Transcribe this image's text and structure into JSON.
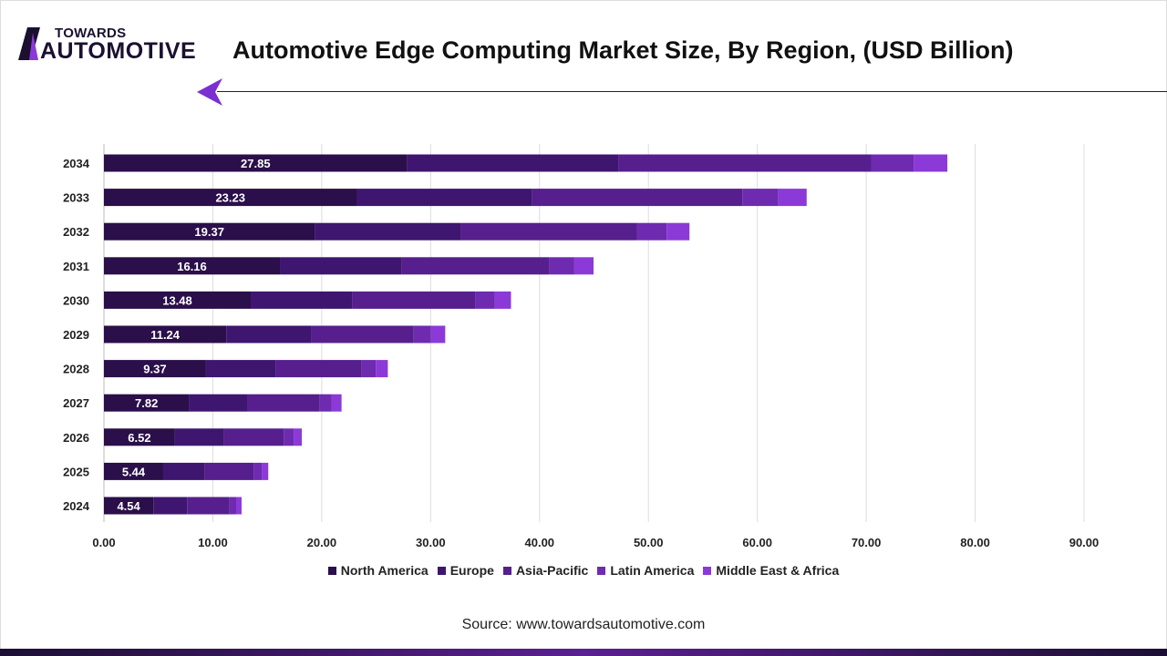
{
  "brand": {
    "logo_line1": "TOWARDS",
    "logo_line2": "AUTOMOTIVE"
  },
  "header": {
    "title": "Automotive Edge Computing Market Size, By Region, (USD Billion)"
  },
  "footer": {
    "source": "Source: www.towardsautomotive.com"
  },
  "chart_data": {
    "type": "bar",
    "orientation": "horizontal",
    "stacked": true,
    "title": "Automotive Edge Computing Market Size, By Region, (USD Billion)",
    "categories": [
      "2034",
      "2033",
      "2032",
      "2031",
      "2030",
      "2029",
      "2028",
      "2027",
      "2026",
      "2025",
      "2024"
    ],
    "xlim": [
      0,
      90
    ],
    "x_ticks": [
      "0.00",
      "10.00",
      "20.00",
      "30.00",
      "40.00",
      "50.00",
      "60.00",
      "70.00",
      "80.00",
      "90.00"
    ],
    "grid": "vertical",
    "legend_position": "bottom",
    "series": [
      {
        "name": "North America",
        "color": "#2a0f4a",
        "values": [
          27.85,
          23.23,
          19.37,
          16.16,
          13.48,
          11.24,
          9.37,
          7.82,
          6.52,
          5.44,
          4.54
        ],
        "labels": [
          "27.85",
          "23.23",
          "19.37",
          "16.16",
          "13.48",
          "11.24",
          "9.37",
          "7.82",
          "6.52",
          "5.44",
          "4.54"
        ]
      },
      {
        "name": "Europe",
        "color": "#3e1670",
        "values": [
          19.4,
          16.1,
          13.4,
          11.2,
          9.3,
          7.8,
          6.4,
          5.4,
          4.5,
          3.8,
          3.1
        ]
      },
      {
        "name": "Asia-Pacific",
        "color": "#561f8d",
        "values": [
          23.2,
          19.3,
          16.2,
          13.5,
          11.3,
          9.4,
          7.9,
          6.6,
          5.5,
          4.5,
          3.9
        ]
      },
      {
        "name": "Latin America",
        "color": "#6e2bb0",
        "values": [
          3.9,
          3.3,
          2.7,
          2.3,
          1.8,
          1.6,
          1.3,
          1.1,
          0.9,
          0.75,
          0.6
        ]
      },
      {
        "name": "Middle East & Africa",
        "color": "#8b3ad8",
        "values": [
          3.1,
          2.6,
          2.1,
          1.8,
          1.5,
          1.3,
          1.1,
          0.9,
          0.75,
          0.6,
          0.5
        ]
      }
    ]
  }
}
